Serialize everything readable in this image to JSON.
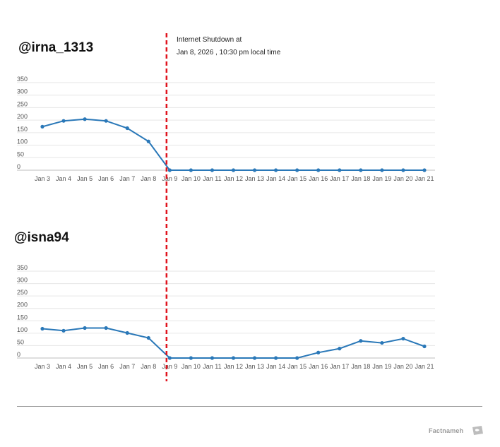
{
  "chart_data": [
    {
      "type": "line",
      "title": "@irna_1313",
      "categories": [
        "Jan 3",
        "Jan 4",
        "Jan 5",
        "Jan 6",
        "Jan 7",
        "Jan 8",
        "Jan 9",
        "Jan 10",
        "Jan 11",
        "Jan 12",
        "Jan 13",
        "Jan 14",
        "Jan 15",
        "Jan 16",
        "Jan 17",
        "Jan 18",
        "Jan 19",
        "Jan 20",
        "Jan 21"
      ],
      "y_ticks": [
        "0",
        "50",
        "100",
        "150",
        "200",
        "250",
        "300",
        "350"
      ],
      "ylim": [
        0,
        350
      ],
      "values": [
        174,
        197,
        204,
        197,
        168,
        115,
        0,
        0,
        0,
        0,
        0,
        0,
        0,
        0,
        0,
        0,
        0,
        0,
        0
      ],
      "grid": true
    },
    {
      "type": "line",
      "title": "@isna94",
      "categories": [
        "Jan 3",
        "Jan 4",
        "Jan 5",
        "Jan 6",
        "Jan 7",
        "Jan 8",
        "Jan 9",
        "Jan 10",
        "Jan 11",
        "Jan 12",
        "Jan 13",
        "Jan 14",
        "Jan 15",
        "Jan 16",
        "Jan 17",
        "Jan 18",
        "Jan 19",
        "Jan 20",
        "Jan 21"
      ],
      "y_ticks": [
        "0",
        "50",
        "100",
        "150",
        "200",
        "250",
        "300",
        "350"
      ],
      "ylim": [
        0,
        350
      ],
      "values": [
        118,
        110,
        121,
        121,
        101,
        81,
        0,
        0,
        0,
        0,
        0,
        0,
        0,
        22,
        38,
        69,
        61,
        78,
        47
      ],
      "grid": true
    }
  ],
  "annotation": {
    "line1": "Internet Shutdown at",
    "line2": "Jan 8, 2026 , 10:30 pm local time"
  },
  "colors": {
    "series": "#2a78b8",
    "shutdown_line": "#e0141e"
  },
  "brand": "Factnameh"
}
